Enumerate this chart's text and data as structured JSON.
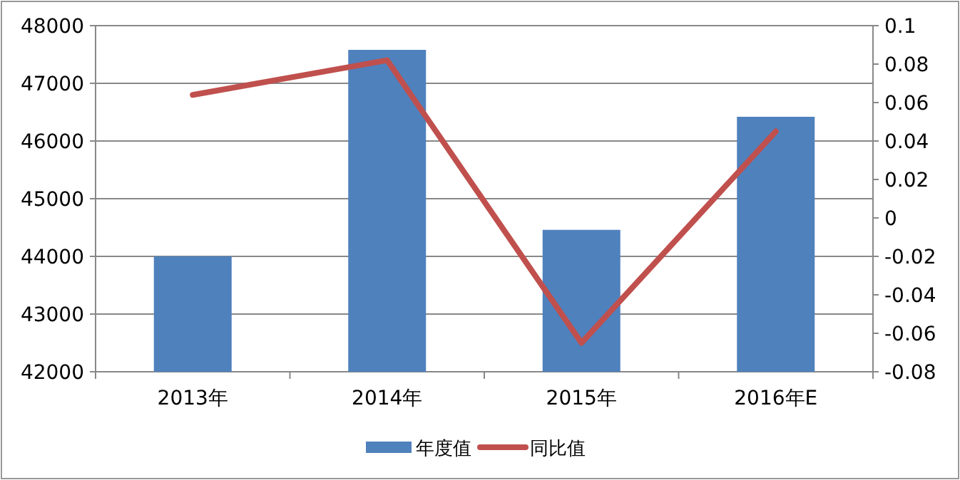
{
  "chart_data": {
    "type": "bar",
    "categories": [
      "2013年",
      "2014年",
      "2015年",
      "2016年E"
    ],
    "series": [
      {
        "name": "年度值",
        "color": "#4f81bd",
        "values": [
          44000,
          47580,
          44460,
          46420
        ]
      },
      {
        "name": "同比值",
        "type": "line",
        "axis": "y2",
        "color": "#c0504d",
        "values": [
          0.064,
          0.082,
          -0.065,
          0.045
        ]
      }
    ],
    "ylim": [
      42000,
      48000
    ],
    "yticks": [
      42000,
      43000,
      44000,
      45000,
      46000,
      47000,
      48000
    ],
    "y2lim": [
      -0.08,
      0.1
    ],
    "y2ticks": [
      -0.08,
      -0.06,
      -0.04,
      -0.02,
      0,
      0.02,
      0.04,
      0.06,
      0.08,
      0.1
    ],
    "grid": "y",
    "legend": "bottom"
  }
}
